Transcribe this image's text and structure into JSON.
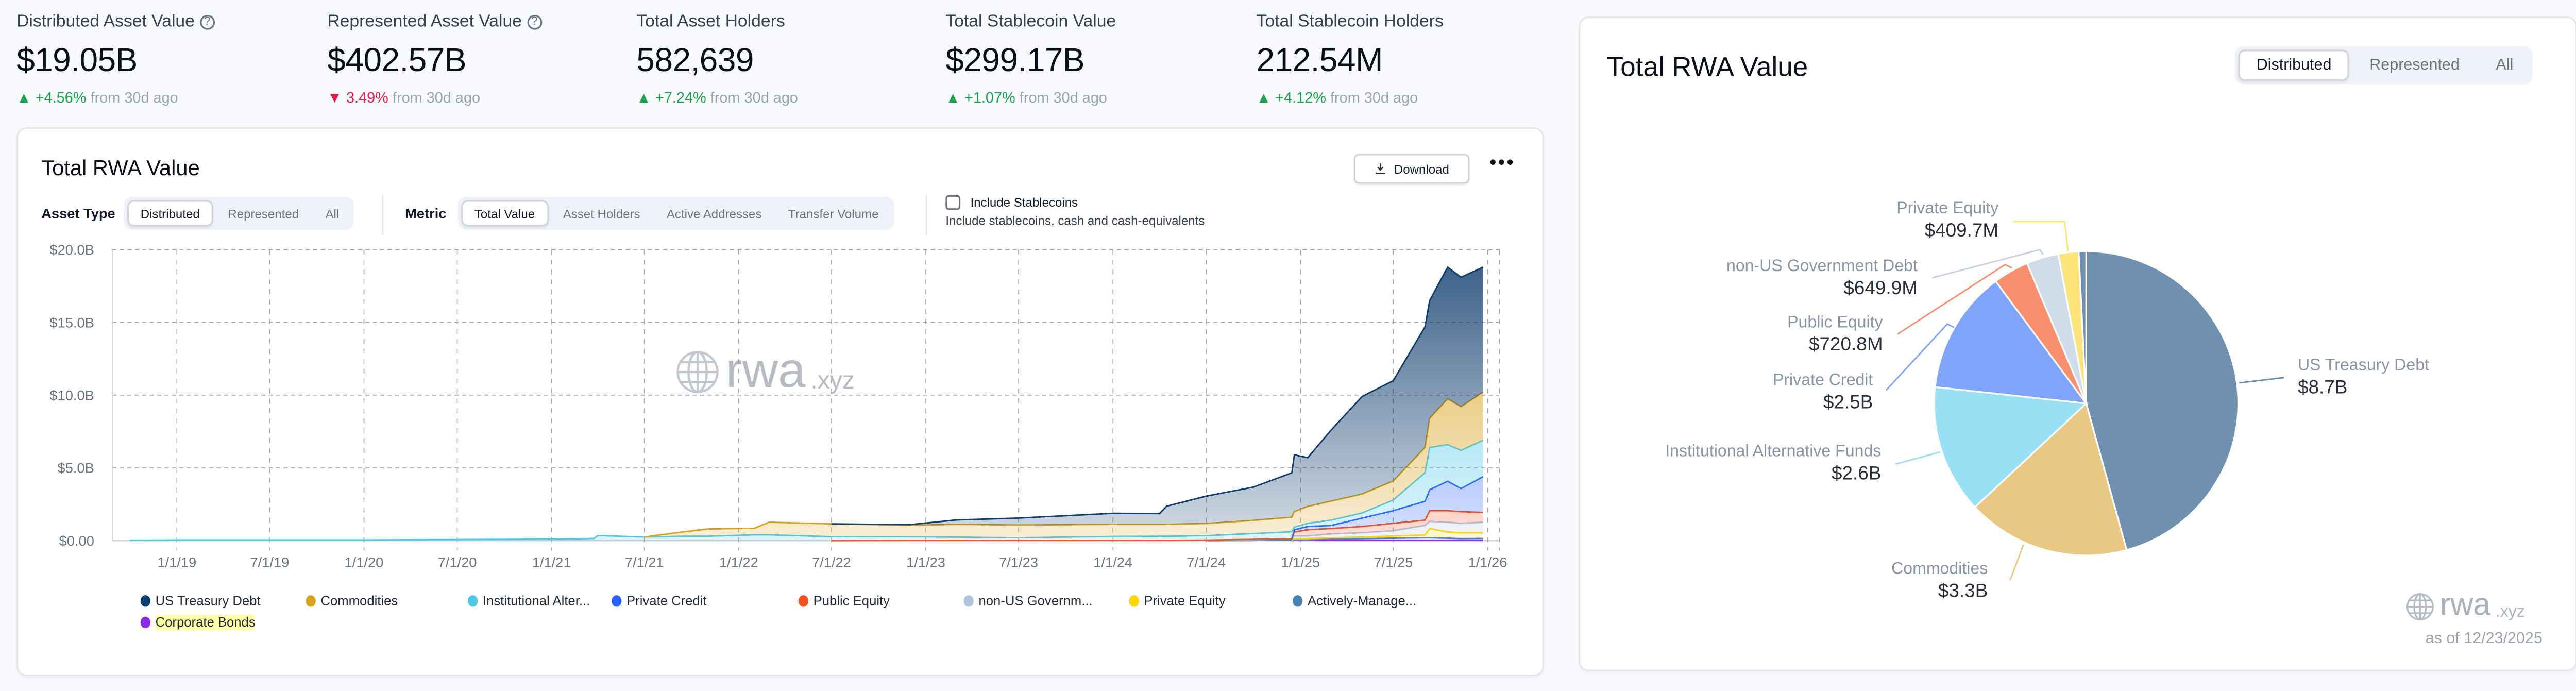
{
  "kpis": [
    {
      "label": "Distributed Asset Value",
      "info": true,
      "value": "$19.05B",
      "delta": "+4.56%",
      "delta_dir": "up",
      "suffix": "from 30d ago"
    },
    {
      "label": "Represented Asset Value",
      "info": true,
      "value": "$402.57B",
      "delta": "3.49%",
      "delta_dir": "down",
      "suffix": "from 30d ago"
    },
    {
      "label": "Total Asset Holders",
      "info": false,
      "value": "582,639",
      "delta": "+7.24%",
      "delta_dir": "up",
      "suffix": "from 30d ago"
    },
    {
      "label": "Total Stablecoin Value",
      "info": false,
      "value": "$299.17B",
      "delta": "+1.07%",
      "delta_dir": "up",
      "suffix": "from 30d ago"
    },
    {
      "label": "Total Stablecoin Holders",
      "info": false,
      "value": "212.54M",
      "delta": "+4.12%",
      "delta_dir": "up",
      "suffix": "from 30d ago"
    }
  ],
  "left_card": {
    "title": "Total RWA Value",
    "download_label": "Download",
    "more_icon": "more-horizontal-icon",
    "asset_type": {
      "label": "Asset Type",
      "options": [
        "Distributed",
        "Represented",
        "All"
      ],
      "selected": "Distributed"
    },
    "metric": {
      "label": "Metric",
      "options": [
        "Total Value",
        "Asset Holders",
        "Active Addresses",
        "Transfer Volume"
      ],
      "selected": "Total Value"
    },
    "stablecoins": {
      "label": "Include Stablecoins",
      "sub": "Include stablecoins, cash and cash-equivalents",
      "checked": false
    },
    "watermark": {
      "main": "rwa",
      "suffix": ".xyz"
    }
  },
  "right_card": {
    "title": "Total RWA Value",
    "tabs": [
      "Distributed",
      "Represented",
      "All"
    ],
    "selected": "Distributed",
    "watermark": {
      "main": "rwa",
      "suffix": ".xyz"
    },
    "as_of": "as of 12/23/2025"
  },
  "chart_data": [
    {
      "type": "area",
      "stacked": true,
      "title": "Total RWA Value",
      "ylim": [
        0,
        20
      ],
      "y_ticks": [
        {
          "v": 0,
          "label": "$0.00"
        },
        {
          "v": 5,
          "label": "$5.0B"
        },
        {
          "v": 10,
          "label": "$10.0B"
        },
        {
          "v": 15,
          "label": "$15.0B"
        },
        {
          "v": 20,
          "label": "$20.0B"
        }
      ],
      "x_ticks": [
        "1/1/19",
        "7/1/19",
        "1/1/20",
        "7/1/20",
        "1/1/21",
        "7/1/21",
        "1/1/22",
        "7/1/22",
        "1/1/23",
        "7/1/23",
        "1/1/24",
        "7/1/24",
        "1/1/25",
        "7/1/25",
        "1/1/26"
      ],
      "grid": true,
      "legend": "bottom",
      "unit": "USD billions",
      "dates": [
        "2018-10-01",
        "2019-01-01",
        "2020-01-01",
        "2021-01-01",
        "2021-03-25",
        "2021-04-01",
        "2021-07-01",
        "2021-09-15",
        "2021-11-01",
        "2022-02-01",
        "2022-03-01",
        "2022-07-01",
        "2022-12-01",
        "2023-03-01",
        "2023-07-01",
        "2024-01-01",
        "2024-04-01",
        "2024-04-15",
        "2024-07-01",
        "2024-10-01",
        "2024-12-15",
        "2024-12-20",
        "2025-01-15",
        "2025-03-01",
        "2025-05-01",
        "2025-07-01",
        "2025-09-01",
        "2025-09-10",
        "2025-10-15",
        "2025-11-10",
        "2025-12-23"
      ],
      "series": [
        {
          "name": "US Treasury Debt",
          "legend_label": "US Treasury Debt",
          "color": "#0f3d6e",
          "values": [
            0,
            0,
            0,
            0,
            0,
            0,
            0,
            0,
            0,
            0,
            0,
            0,
            0.05,
            0.3,
            0.48,
            0.76,
            0.74,
            1.25,
            1.88,
            2.29,
            3.05,
            3.91,
            3.35,
            4.86,
            6.7,
            6.9,
            8.3,
            8.1,
            9.06,
            8.9,
            8.6
          ]
        },
        {
          "name": "Commodities",
          "legend_label": "Commodities",
          "color": "#d9a21b",
          "values": [
            0,
            0,
            0,
            0,
            0,
            0,
            0,
            0.3,
            0.5,
            0.45,
            0.87,
            0.88,
            0.78,
            0.88,
            0.87,
            0.83,
            0.82,
            0.82,
            0.84,
            0.9,
            1.0,
            1.06,
            1.16,
            1.3,
            1.3,
            1.3,
            1.73,
            2.0,
            3.14,
            3.0,
            3.3
          ]
        },
        {
          "name": "Institutional Alternative Funds",
          "legend_label": "Institutional Alter...",
          "color": "#4fc8e8",
          "values": [
            0.02,
            0.05,
            0.05,
            0.1,
            0.15,
            0.35,
            0.25,
            0.3,
            0.3,
            0.4,
            0.4,
            0.27,
            0.25,
            0.22,
            0.18,
            0.27,
            0.28,
            0.28,
            0.3,
            0.4,
            0.48,
            0.18,
            0.22,
            0.37,
            0.35,
            0.74,
            1.96,
            2.9,
            2.51,
            2.62,
            2.5
          ]
        },
        {
          "name": "Private Credit",
          "legend_label": "Private Credit",
          "color": "#2962ff",
          "values": [
            0,
            0,
            0,
            0,
            0,
            0,
            0,
            0,
            0,
            0,
            0,
            0,
            0,
            0,
            0,
            0,
            0,
            0,
            0,
            0,
            0,
            0.15,
            0.22,
            0.21,
            0.58,
            0.87,
            1.3,
            1.44,
            2.03,
            1.59,
            2.46
          ]
        },
        {
          "name": "Public Equity",
          "legend_label": "Public Equity",
          "color": "#f4511e",
          "values": [
            0,
            0,
            0,
            0,
            0,
            0,
            0,
            0,
            0,
            0,
            0,
            0,
            0.02,
            0.02,
            0.02,
            0.02,
            0.02,
            0.02,
            0.02,
            0.02,
            0.02,
            0.28,
            0.43,
            0.37,
            0.43,
            0.51,
            0.37,
            0.73,
            0.8,
            0.8,
            0.68
          ]
        },
        {
          "name": "non-US Government Debt",
          "legend_label": "non-US Governm...",
          "color": "#b0c4de",
          "values": [
            0,
            0,
            0,
            0,
            0,
            0,
            0,
            0,
            0,
            0,
            0,
            0,
            0,
            0,
            0,
            0,
            0,
            0,
            0.02,
            0.05,
            0.08,
            0.18,
            0.18,
            0.26,
            0.29,
            0.36,
            0.65,
            0.5,
            0.66,
            0.65,
            0.72
          ]
        },
        {
          "name": "Private Equity",
          "legend_label": "Private Equity",
          "color": "#ffd600",
          "values": [
            0,
            0,
            0,
            0,
            0,
            0,
            0,
            0,
            0,
            0,
            0,
            0,
            0,
            0,
            0,
            0,
            0,
            0,
            0,
            0,
            0,
            0.08,
            0.08,
            0.1,
            0.11,
            0.15,
            0.19,
            0.63,
            0.43,
            0.4,
            0.39
          ]
        },
        {
          "name": "Actively-Managed",
          "legend_label": "Actively-Manage...",
          "color": "#4682b4",
          "values": [
            0,
            0,
            0,
            0,
            0,
            0,
            0,
            0,
            0,
            0,
            0,
            0,
            0,
            0,
            0,
            0,
            0,
            0,
            0,
            0.02,
            0.03,
            0.04,
            0.04,
            0.08,
            0.12,
            0.15,
            0.18,
            0.18,
            0.15,
            0.12,
            0.13
          ]
        },
        {
          "name": "Corporate Bonds",
          "legend_label": "Corporate Bonds",
          "color": "#8a2be2",
          "highlighted": true,
          "values": [
            0,
            0,
            0,
            0,
            0,
            0,
            0,
            0,
            0,
            0,
            0,
            0,
            0,
            0,
            0,
            0,
            0,
            0,
            0,
            0,
            0,
            0.02,
            0.02,
            0.02,
            0.02,
            0.02,
            0.02,
            0.02,
            0.02,
            0.02,
            0.02
          ]
        }
      ]
    },
    {
      "type": "pie",
      "title": "Total RWA Value",
      "unit": "USD billions",
      "slices": [
        {
          "name": "US Treasury Debt",
          "label": "$8.7B",
          "value": 8.7,
          "color": "#7090b0"
        },
        {
          "name": "Commodities",
          "label": "$3.3B",
          "value": 3.3,
          "color": "#e8c882"
        },
        {
          "name": "Institutional Alternative Funds",
          "label": "$2.6B",
          "value": 2.6,
          "color": "#9ae0f5"
        },
        {
          "name": "Private Credit",
          "label": "$2.5B",
          "value": 2.5,
          "color": "#7fa4fa"
        },
        {
          "name": "Public Equity",
          "label": "$720.8M",
          "value": 0.7208,
          "color": "#fa8f70"
        },
        {
          "name": "non-US Government Debt",
          "label": "$649.9M",
          "value": 0.6499,
          "color": "#d0dcea"
        },
        {
          "name": "Private Equity",
          "label": "$409.7M",
          "value": 0.4097,
          "color": "#fde47a"
        },
        {
          "value": 0.15,
          "color": "#7090b0"
        }
      ]
    }
  ]
}
